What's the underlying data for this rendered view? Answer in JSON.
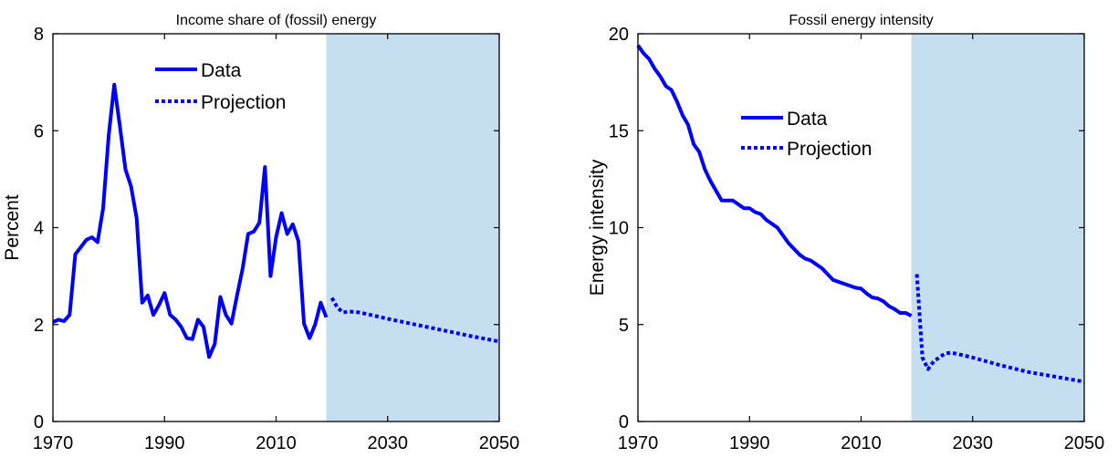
{
  "chart_data": [
    {
      "type": "line",
      "title": "Income share of (fossil) energy",
      "xlabel": "",
      "ylabel": "Percent",
      "xlim": [
        1970,
        2050
      ],
      "ylim": [
        0,
        8
      ],
      "x_ticks": [
        1970,
        1990,
        2010,
        2030,
        2050
      ],
      "y_ticks": [
        0,
        2,
        4,
        6,
        8
      ],
      "grid": false,
      "legend_position": "top-center",
      "shaded_region": {
        "x_start": 2019,
        "x_end": 2050,
        "color": "#c5dff0"
      },
      "series": [
        {
          "name": "Data",
          "style": "solid",
          "color": "#0000ff",
          "x": [
            1970,
            1971,
            1972,
            1973,
            1974,
            1975,
            1976,
            1977,
            1978,
            1979,
            1980,
            1981,
            1982,
            1983,
            1984,
            1985,
            1986,
            1987,
            1988,
            1989,
            1990,
            1991,
            1992,
            1993,
            1994,
            1995,
            1996,
            1997,
            1998,
            1999,
            2000,
            2001,
            2002,
            2003,
            2004,
            2005,
            2006,
            2007,
            2008,
            2009,
            2010,
            2011,
            2012,
            2013,
            2014,
            2015,
            2016,
            2017,
            2018,
            2019
          ],
          "y": [
            2.05,
            2.1,
            2.07,
            2.2,
            3.45,
            3.6,
            3.75,
            3.8,
            3.7,
            4.4,
            5.9,
            6.95,
            6.1,
            5.2,
            4.85,
            4.2,
            2.45,
            2.6,
            2.2,
            2.4,
            2.65,
            2.2,
            2.1,
            1.95,
            1.72,
            1.7,
            2.1,
            1.95,
            1.33,
            1.6,
            2.57,
            2.2,
            2.02,
            2.6,
            3.15,
            3.87,
            3.92,
            4.1,
            5.25,
            3.0,
            3.8,
            4.3,
            3.87,
            4.07,
            3.72,
            2.02,
            1.72,
            2.0,
            2.45,
            2.15
          ]
        },
        {
          "name": "Projection",
          "style": "dotted",
          "color": "#0000ff",
          "x": [
            2020,
            2021,
            2022,
            2023,
            2025,
            2030,
            2035,
            2040,
            2045,
            2050
          ],
          "y": [
            2.55,
            2.35,
            2.25,
            2.27,
            2.25,
            2.12,
            2.0,
            1.88,
            1.76,
            1.65
          ]
        }
      ]
    },
    {
      "type": "line",
      "title": "Fossil energy intensity",
      "xlabel": "",
      "ylabel": "Energy intensity",
      "xlim": [
        1970,
        2050
      ],
      "ylim": [
        0,
        20
      ],
      "x_ticks": [
        1970,
        1990,
        2010,
        2030,
        2050
      ],
      "y_ticks": [
        0,
        5,
        10,
        15,
        20
      ],
      "grid": false,
      "legend_position": "top-center",
      "shaded_region": {
        "x_start": 2019,
        "x_end": 2050,
        "color": "#c5dff0"
      },
      "series": [
        {
          "name": "Data",
          "style": "solid",
          "color": "#0000ff",
          "x": [
            1970,
            1971,
            1972,
            1973,
            1974,
            1975,
            1976,
            1977,
            1978,
            1979,
            1980,
            1981,
            1982,
            1983,
            1984,
            1985,
            1986,
            1987,
            1988,
            1989,
            1990,
            1991,
            1992,
            1993,
            1994,
            1995,
            1996,
            1997,
            1998,
            1999,
            2000,
            2001,
            2002,
            2003,
            2004,
            2005,
            2006,
            2007,
            2008,
            2009,
            2010,
            2011,
            2012,
            2013,
            2014,
            2015,
            2016,
            2017,
            2018,
            2019
          ],
          "y": [
            19.4,
            19.0,
            18.7,
            18.2,
            17.8,
            17.3,
            17.1,
            16.5,
            15.8,
            15.3,
            14.3,
            13.9,
            13.0,
            12.4,
            11.9,
            11.4,
            11.4,
            11.4,
            11.2,
            11.0,
            11.0,
            10.8,
            10.7,
            10.4,
            10.2,
            10.0,
            9.6,
            9.2,
            8.9,
            8.6,
            8.4,
            8.3,
            8.1,
            7.9,
            7.6,
            7.3,
            7.2,
            7.1,
            7.0,
            6.9,
            6.85,
            6.6,
            6.4,
            6.35,
            6.2,
            5.95,
            5.8,
            5.6,
            5.6,
            5.45
          ]
        },
        {
          "name": "Projection",
          "style": "dotted",
          "color": "#0000ff",
          "x": [
            2020,
            2021,
            2022,
            2023,
            2024,
            2025,
            2026,
            2027,
            2030,
            2035,
            2040,
            2045,
            2050
          ],
          "y": [
            7.6,
            3.3,
            2.7,
            3.1,
            3.3,
            3.5,
            3.55,
            3.5,
            3.3,
            2.9,
            2.55,
            2.3,
            2.05
          ]
        }
      ]
    }
  ]
}
